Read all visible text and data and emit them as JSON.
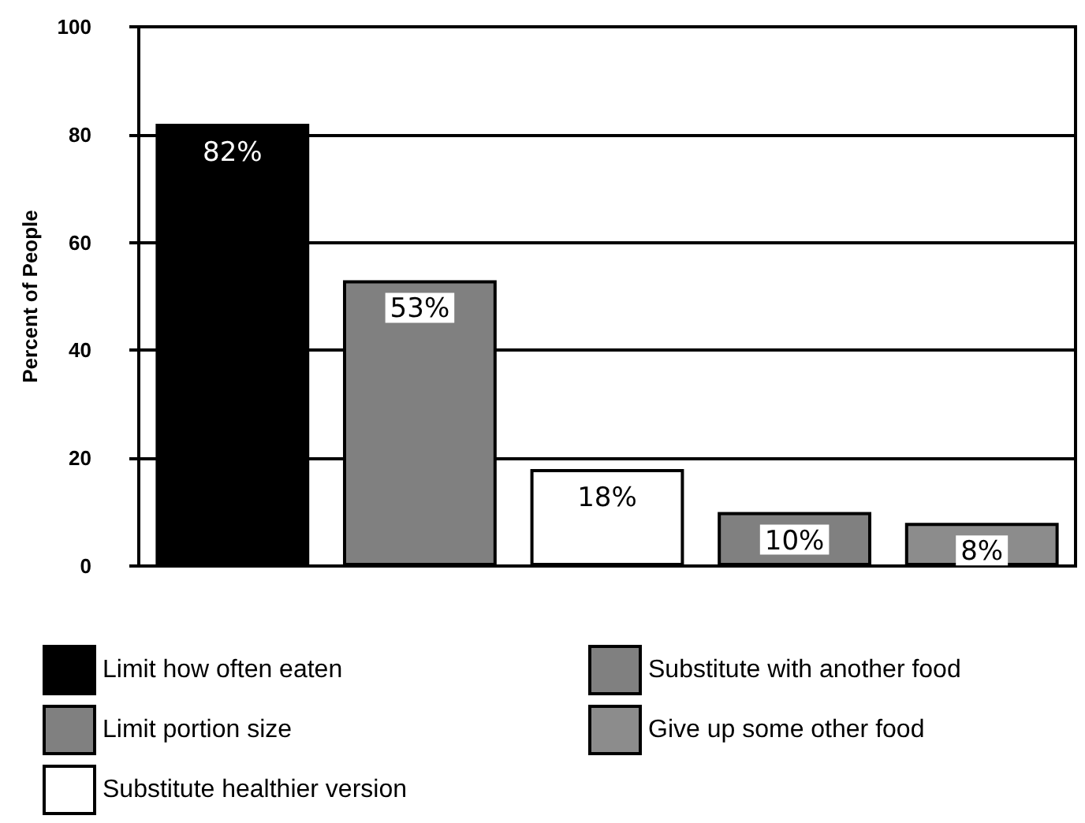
{
  "chart_data": {
    "type": "bar",
    "ylabel": "Percent of People",
    "categories": [
      null,
      null,
      null,
      null,
      null
    ],
    "stacked": true,
    "series": [
      {
        "name": "Limit how often eaten",
        "color": "#000000",
        "values": [
          82,
          null,
          null,
          null,
          null
        ],
        "value_labels": [
          "82%",
          null,
          null,
          null,
          null
        ]
      },
      {
        "name": "Limit portion size",
        "color": "#808080",
        "values": [
          null,
          53,
          null,
          null,
          null
        ],
        "value_labels": [
          null,
          "53%",
          null,
          null,
          null
        ]
      },
      {
        "name": "Substitute healthier version",
        "color": "#ffffff",
        "values": [
          null,
          null,
          18,
          null,
          null
        ],
        "value_labels": [
          null,
          null,
          "18%",
          null,
          null
        ]
      },
      {
        "name": "Substitute with another food",
        "color": "#808080",
        "values": [
          null,
          null,
          null,
          10,
          null
        ],
        "value_labels": [
          null,
          null,
          null,
          "10%",
          null
        ]
      },
      {
        "name": "Give up some other food",
        "color": "#8c8c8c",
        "values": [
          null,
          null,
          null,
          null,
          8
        ],
        "value_labels": [
          null,
          null,
          null,
          null,
          "8%"
        ]
      }
    ],
    "ylim": [
      0,
      100
    ],
    "yticks": [
      0,
      20,
      40,
      60,
      80,
      100
    ],
    "grid": "y",
    "legend": "bottom"
  }
}
